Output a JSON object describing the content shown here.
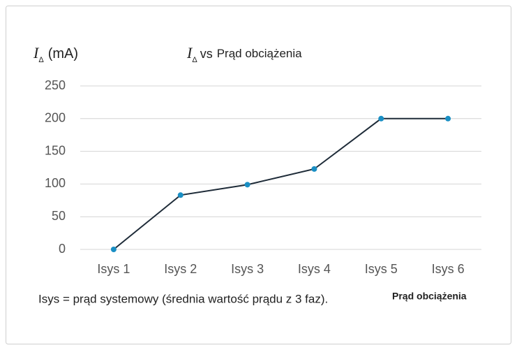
{
  "chart_data": {
    "type": "line",
    "y_label": {
      "symbol": "I",
      "subscript": "Δ",
      "unit": "(mA)"
    },
    "title": {
      "symbol": "I",
      "subscript": "Δ",
      "vs": "vs",
      "text": "Prąd obciążenia"
    },
    "x_label": "Prąd obciążenia",
    "note": "Isys = prąd systemowy (średnia wartość prądu z 3 faz).",
    "categories": [
      "Isys 1",
      "Isys 2",
      "Isys 3",
      "Isys 4",
      "Isys 5",
      "Isys 6"
    ],
    "series": [
      {
        "line_color": "#1e2b38",
        "color": "#1a8fc4",
        "values": [
          0,
          83,
          99,
          123,
          200,
          200
        ]
      }
    ],
    "ylim": [
      0,
      250
    ],
    "yticks": [
      0,
      50,
      100,
      150,
      200,
      250
    ],
    "grid": true
  }
}
